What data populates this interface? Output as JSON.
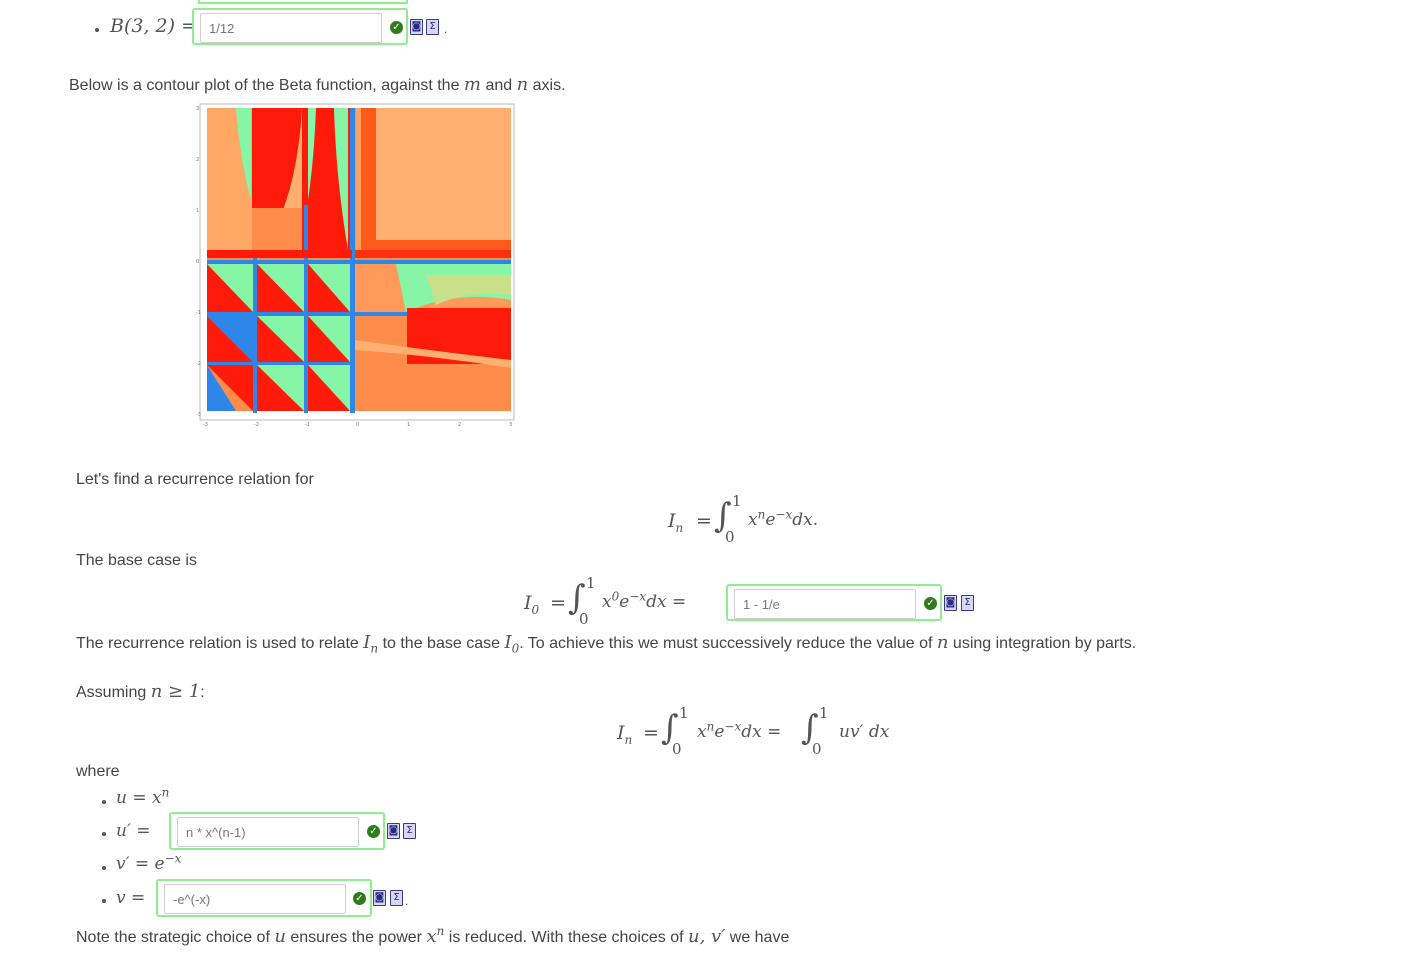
{
  "q1": {
    "label": "B(3, 2) =",
    "value": "1/12",
    "trailing": "."
  },
  "plot_intro": {
    "before": "Below is a contour plot of the Beta function, against the ",
    "var1": "m",
    "middle": " and ",
    "var2": "n",
    "after": " axis."
  },
  "plot": {
    "y_ticks": [
      "3",
      "2",
      "1",
      "0",
      "-1",
      "-2",
      "-3"
    ],
    "x_ticks": [
      "-3",
      "-2",
      "-1",
      "0",
      "1",
      "2",
      "3"
    ],
    "colors": {
      "red": "#ff1a0a",
      "orange": "#ff8c4a",
      "blue": "#2e86e8",
      "green": "#86f5a5",
      "light": "#ffb070"
    }
  },
  "recurrence_intro": "Let's find a recurrence relation for",
  "eq_In": {
    "lhs": "I",
    "lhs_sub": "n",
    "equals": "=",
    "lower": "0",
    "upper": "1",
    "integrand": "x",
    "power": "n",
    "exp": "e",
    "exp_power": "−x",
    "dx": "dx."
  },
  "base_case_label": "The base case is",
  "eq_I0": {
    "lhs": "I",
    "lhs_sub": "0",
    "equals": "=",
    "lower": "0",
    "upper": "1",
    "integrand": "x",
    "power": "0",
    "exp": "e",
    "exp_power": "−x",
    "dx": "dx =",
    "value": "1 - 1/e"
  },
  "relation_text": {
    "p1": "The recurrence relation is used to relate ",
    "In": "I",
    "In_sub": "n",
    "p2": " to the base case ",
    "I0": "I",
    "I0_sub": "0",
    "p3": ". To achieve this we must successively reduce the value of ",
    "n": "n",
    "p4": " using integration by parts."
  },
  "assuming": {
    "label": "Assuming ",
    "cond": "n ≥ 1",
    "colon": ":"
  },
  "eq_parts": {
    "lhs": "I",
    "lhs_sub": "n",
    "equals": "=",
    "lower": "0",
    "upper": "1",
    "integrand": "x",
    "power": "n",
    "exp": "e",
    "exp_power": "−x",
    "dx": "dx =",
    "lower2": "0",
    "upper2": "1",
    "integrand2": "uv′ dx"
  },
  "where_label": "where",
  "defs": {
    "u": {
      "lhs": "u = x",
      "sup": "n"
    },
    "du": {
      "lhs": "u′ =",
      "value": "n * x^(n-1)"
    },
    "dv": {
      "lhs": "v′ = e",
      "sup": "−x"
    },
    "v": {
      "lhs": "v =",
      "value": "-e^(-x)",
      "trailing": "."
    }
  },
  "note": {
    "p1": "Note the strategic choice of ",
    "u": "u",
    "p2": " ensures the power ",
    "x": "x",
    "x_sup": "n",
    "p3": " is reduced. With these choices of ",
    "uv": "u, v′",
    "p4": " we have"
  },
  "icons": {
    "check": "check-icon",
    "preview": "preview-icon",
    "sigma": "sigma-icon"
  }
}
